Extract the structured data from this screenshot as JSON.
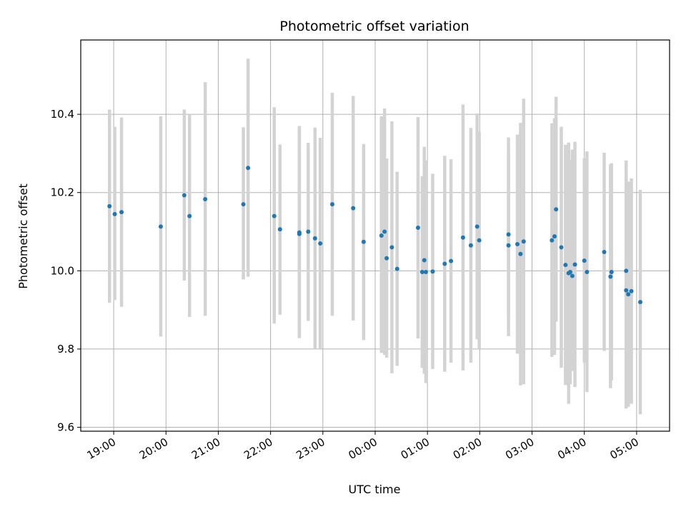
{
  "chart_data": {
    "type": "scatter",
    "title": "Photometric offset variation",
    "xlabel": "UTC time",
    "ylabel": "Photometric offset",
    "x_unit": "hours relative to 00:00 UTC",
    "xlim": [
      -5.63,
      5.63
    ],
    "ylim": [
      9.59,
      10.59
    ],
    "yticks": [
      9.6,
      9.8,
      10.0,
      10.2,
      10.4
    ],
    "ytick_labels": [
      "9.6",
      "9.8",
      "10.0",
      "10.2",
      "10.4"
    ],
    "xticks": [
      -5,
      -4,
      -3,
      -2,
      -1,
      0,
      1,
      2,
      3,
      4,
      5
    ],
    "xtick_labels": [
      "19:00",
      "20:00",
      "21:00",
      "22:00",
      "23:00",
      "00:00",
      "01:00",
      "02:00",
      "03:00",
      "04:00",
      "05:00"
    ],
    "grid": true,
    "point_color": "#1f77b4",
    "errorbar_color": "#d3d3d3",
    "points": [
      {
        "x": -5.08,
        "y": 10.165,
        "lo": 9.918,
        "hi": 10.412
      },
      {
        "x": -4.98,
        "y": 10.145,
        "lo": 9.925,
        "hi": 10.368
      },
      {
        "x": -4.85,
        "y": 10.15,
        "lo": 9.908,
        "hi": 10.392
      },
      {
        "x": -4.1,
        "y": 10.113,
        "lo": 9.832,
        "hi": 10.395
      },
      {
        "x": -3.65,
        "y": 10.193,
        "lo": 9.975,
        "hi": 10.412
      },
      {
        "x": -3.55,
        "y": 10.14,
        "lo": 9.882,
        "hi": 10.4
      },
      {
        "x": -3.25,
        "y": 10.183,
        "lo": 9.885,
        "hi": 10.482
      },
      {
        "x": -2.52,
        "y": 10.17,
        "lo": 9.978,
        "hi": 10.367
      },
      {
        "x": -2.43,
        "y": 10.263,
        "lo": 9.985,
        "hi": 10.542
      },
      {
        "x": -1.93,
        "y": 10.14,
        "lo": 9.865,
        "hi": 10.418
      },
      {
        "x": -1.82,
        "y": 10.106,
        "lo": 9.888,
        "hi": 10.323
      },
      {
        "x": -1.45,
        "y": 10.098,
        "lo": 9.828,
        "hi": 10.37
      },
      {
        "x": -1.45,
        "y": 10.094,
        "lo": 9.83,
        "hi": 10.36
      },
      {
        "x": -1.28,
        "y": 10.1,
        "lo": 9.872,
        "hi": 10.327
      },
      {
        "x": -1.15,
        "y": 10.083,
        "lo": 9.8,
        "hi": 10.366
      },
      {
        "x": -1.05,
        "y": 10.07,
        "lo": 9.8,
        "hi": 10.34
      },
      {
        "x": -0.82,
        "y": 10.17,
        "lo": 9.885,
        "hi": 10.455
      },
      {
        "x": -0.42,
        "y": 10.16,
        "lo": 9.873,
        "hi": 10.447
      },
      {
        "x": -0.22,
        "y": 10.074,
        "lo": 9.823,
        "hi": 10.324
      },
      {
        "x": 0.12,
        "y": 10.09,
        "lo": 9.79,
        "hi": 10.395
      },
      {
        "x": 0.18,
        "y": 10.1,
        "lo": 9.785,
        "hi": 10.415
      },
      {
        "x": 0.22,
        "y": 10.032,
        "lo": 9.778,
        "hi": 10.287
      },
      {
        "x": 0.32,
        "y": 10.06,
        "lo": 9.738,
        "hi": 10.382
      },
      {
        "x": 0.42,
        "y": 10.005,
        "lo": 9.757,
        "hi": 10.253
      },
      {
        "x": 0.82,
        "y": 10.11,
        "lo": 9.827,
        "hi": 10.393
      },
      {
        "x": 0.9,
        "y": 9.997,
        "lo": 9.752,
        "hi": 10.242
      },
      {
        "x": 0.94,
        "y": 10.027,
        "lo": 9.737,
        "hi": 10.317
      },
      {
        "x": 0.97,
        "y": 9.997,
        "lo": 9.713,
        "hi": 10.282
      },
      {
        "x": 1.1,
        "y": 9.998,
        "lo": 9.749,
        "hi": 10.248
      },
      {
        "x": 1.33,
        "y": 10.018,
        "lo": 9.742,
        "hi": 10.294
      },
      {
        "x": 1.45,
        "y": 10.025,
        "lo": 9.765,
        "hi": 10.285
      },
      {
        "x": 1.68,
        "y": 10.085,
        "lo": 9.745,
        "hi": 10.425
      },
      {
        "x": 1.83,
        "y": 10.065,
        "lo": 9.765,
        "hi": 10.365
      },
      {
        "x": 1.95,
        "y": 10.113,
        "lo": 9.825,
        "hi": 10.402
      },
      {
        "x": 1.99,
        "y": 10.078,
        "lo": 9.8,
        "hi": 10.355
      },
      {
        "x": 2.55,
        "y": 10.093,
        "lo": 9.886,
        "hi": 10.3
      },
      {
        "x": 2.55,
        "y": 10.065,
        "lo": 9.833,
        "hi": 10.341
      },
      {
        "x": 2.72,
        "y": 10.068,
        "lo": 9.788,
        "hi": 10.348
      },
      {
        "x": 2.78,
        "y": 10.043,
        "lo": 9.707,
        "hi": 10.378
      },
      {
        "x": 2.84,
        "y": 10.075,
        "lo": 9.71,
        "hi": 10.44
      },
      {
        "x": 3.38,
        "y": 10.078,
        "lo": 9.78,
        "hi": 10.377
      },
      {
        "x": 3.43,
        "y": 10.088,
        "lo": 9.785,
        "hi": 10.39
      },
      {
        "x": 3.46,
        "y": 10.157,
        "lo": 9.87,
        "hi": 10.445
      },
      {
        "x": 3.56,
        "y": 10.06,
        "lo": 9.752,
        "hi": 10.368
      },
      {
        "x": 3.64,
        "y": 10.015,
        "lo": 9.708,
        "hi": 10.322
      },
      {
        "x": 3.7,
        "y": 9.994,
        "lo": 9.66,
        "hi": 10.328
      },
      {
        "x": 3.73,
        "y": 9.997,
        "lo": 9.71,
        "hi": 10.284
      },
      {
        "x": 3.77,
        "y": 9.987,
        "lo": 9.744,
        "hi": 10.31
      },
      {
        "x": 3.82,
        "y": 10.016,
        "lo": 9.703,
        "hi": 10.33
      },
      {
        "x": 4.0,
        "y": 10.026,
        "lo": 9.765,
        "hi": 10.288
      },
      {
        "x": 4.05,
        "y": 9.997,
        "lo": 9.69,
        "hi": 10.305
      },
      {
        "x": 4.38,
        "y": 10.048,
        "lo": 9.795,
        "hi": 10.302
      },
      {
        "x": 4.5,
        "y": 9.985,
        "lo": 9.7,
        "hi": 10.272
      },
      {
        "x": 4.52,
        "y": 9.997,
        "lo": 9.72,
        "hi": 10.275
      },
      {
        "x": 4.8,
        "y": 10.0,
        "lo": 9.742,
        "hi": 10.258
      },
      {
        "x": 4.8,
        "y": 9.95,
        "lo": 9.648,
        "hi": 10.282
      },
      {
        "x": 4.84,
        "y": 9.94,
        "lo": 9.652,
        "hi": 10.228
      },
      {
        "x": 4.9,
        "y": 9.948,
        "lo": 9.66,
        "hi": 10.236
      },
      {
        "x": 5.07,
        "y": 9.92,
        "lo": 9.633,
        "hi": 10.207
      }
    ]
  }
}
